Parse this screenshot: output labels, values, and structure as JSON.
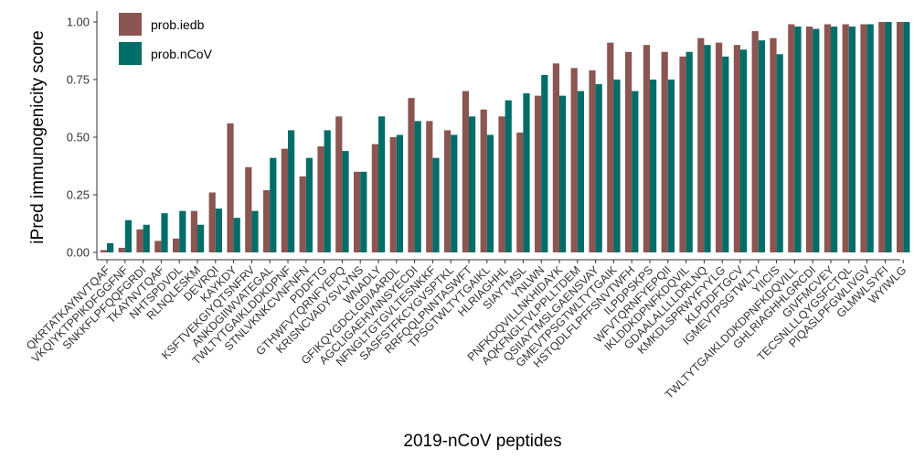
{
  "chart_data": {
    "type": "bar",
    "xlabel": "2019-nCoV peptides",
    "ylabel": "iPred immunogenicity score",
    "ylim": [
      0,
      1
    ],
    "yticks": [
      "0.00",
      "0.25",
      "0.50",
      "0.75",
      "1.00"
    ],
    "grid": false,
    "legend_position": "top-left",
    "categories": [
      "QKRTATKAYNVTQAF",
      "VKQIYKTPPIKDFGGFNF",
      "SNKKFLPFQQFGRDI",
      "TKAYNVTQAF",
      "NHTSPDVDL",
      "RLNQLESKM",
      "DEVRQI",
      "KAYKDY",
      "KSFTVEKGIYQTSNFRV",
      "ANKDGIIWVATEGAL",
      "TWLTYTGAIKLDDKDPNF",
      "STNLVKNKCVNFNFN",
      "PDDFTG",
      "GTHWFVTQRNFYEPQ",
      "KRISNCVADYSVLYNS",
      "WNADLY",
      "GFIKQYGDCLGDIAARDL",
      "AGCLIGAEHVNNSYECDI",
      "NFNGLTGTGVLTESNKKF",
      "SASFSTFKCYGVSPTKL",
      "RRFQQLPNNTASWFT",
      "TPSGTWLTYTGAIKL",
      "HLRIAGHHL",
      "SIAYTMSL",
      "YNLWN",
      "PNFKDQVILLNKHIDAYK",
      "AQKFNGLTVLPPLLTDEM",
      "QSIIAYTMSLGAENSVAY",
      "GMEVTPSGTWLTYTGAIK",
      "HSTQDLFLPFFSNVTWFH",
      "ILPDPSKPS",
      "WFVTQRNFYEPQII",
      "IKLDDKDPNFKDQVIL",
      "GDAALALLLLDRLNQ",
      "KMKDLSPRWYFYYLG",
      "KLPDDFTGCV",
      "IGMEVTPSGTWLTY",
      "YIICIS",
      "TWLTYTGAIKLDDKDPNFKDQVILL",
      "GHLRIAGHHLGRCDI",
      "GIVFMCVEY",
      "TECSNLLLQYGSFCTQL",
      "PIQASLPFGWLIVGV",
      "GLMWLSYFI",
      "WYIWLG"
    ],
    "series": [
      {
        "name": "prob.iedb",
        "color": "#8B5551",
        "values": [
          0.01,
          0.02,
          0.1,
          0.05,
          0.06,
          0.18,
          0.26,
          0.56,
          0.37,
          0.27,
          0.45,
          0.33,
          0.46,
          0.59,
          0.35,
          0.47,
          0.5,
          0.67,
          0.57,
          0.53,
          0.7,
          0.62,
          0.59,
          0.52,
          0.68,
          0.82,
          0.8,
          0.79,
          0.91,
          0.87,
          0.9,
          0.87,
          0.85,
          0.93,
          0.91,
          0.9,
          0.96,
          0.93,
          0.99,
          0.98,
          0.99,
          0.99,
          0.99,
          1.0,
          1.0
        ]
      },
      {
        "name": "prob.nCoV",
        "color": "#006D68",
        "values": [
          0.04,
          0.14,
          0.12,
          0.17,
          0.18,
          0.12,
          0.19,
          0.15,
          0.18,
          0.41,
          0.53,
          0.41,
          0.53,
          0.44,
          0.35,
          0.59,
          0.51,
          0.57,
          0.41,
          0.51,
          0.59,
          0.51,
          0.66,
          0.69,
          0.77,
          0.68,
          0.7,
          0.73,
          0.75,
          0.7,
          0.75,
          0.75,
          0.87,
          0.9,
          0.85,
          0.88,
          0.92,
          0.86,
          0.98,
          0.97,
          0.98,
          0.98,
          0.99,
          1.0,
          1.0
        ]
      }
    ]
  }
}
